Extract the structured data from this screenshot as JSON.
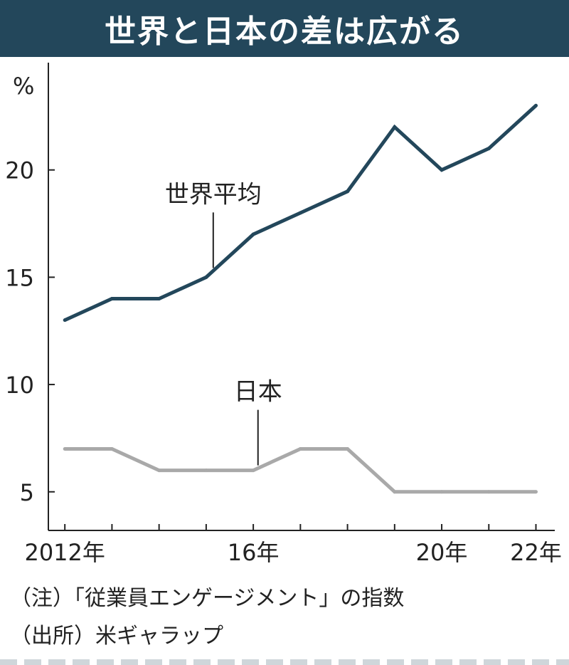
{
  "title": "世界と日本の差は広がる",
  "notes": {
    "note": "（注）「従業員エンゲージメント」の指数",
    "source": "（出所）米ギャラップ"
  },
  "colors": {
    "title_bg": "#23475b",
    "world": "#23475b",
    "japan": "#a9a9a9"
  },
  "chart_data": {
    "type": "line",
    "unit": "%",
    "x": [
      2012,
      2013,
      2014,
      2015,
      2016,
      2017,
      2018,
      2019,
      2020,
      2021,
      2022
    ],
    "x_tick_labels": [
      {
        "x": 2012,
        "label": "2012年"
      },
      {
        "x": 2016,
        "label": "16年"
      },
      {
        "x": 2020,
        "label": "20年"
      },
      {
        "x": 2022,
        "label": "22年"
      }
    ],
    "y_ticks": [
      5,
      10,
      15,
      20
    ],
    "ylim": [
      3.2,
      25
    ],
    "xlim": [
      2011.65,
      2022.4
    ],
    "grid": false,
    "series": [
      {
        "name": "世界平均",
        "color": "#23475b",
        "values": [
          13,
          14,
          14,
          15,
          17,
          18,
          19,
          22,
          20,
          21,
          23
        ]
      },
      {
        "name": "日本",
        "color": "#a9a9a9",
        "values": [
          7,
          7,
          6,
          6,
          6,
          7,
          7,
          5,
          5,
          5,
          5
        ]
      }
    ],
    "annotations": [
      {
        "series": "世界平均",
        "x": 2015.15
      },
      {
        "series": "日本",
        "x": 2016.1
      }
    ]
  }
}
